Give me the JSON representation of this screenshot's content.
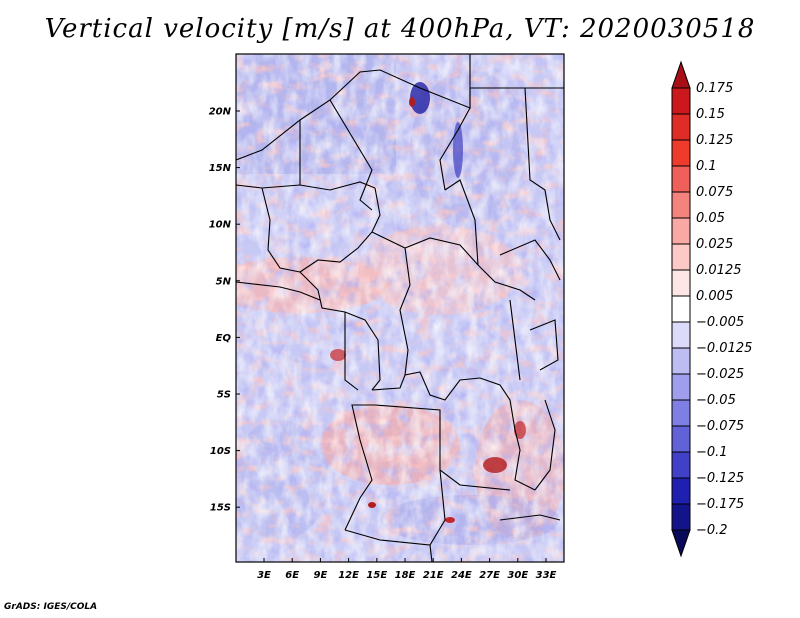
{
  "title": "Vertical velocity [m/s] at 400hPa, VT: 2020030518",
  "footer": "GrADS: IGES/COLA",
  "lat_ticks": [
    "20N",
    "15N",
    "10N",
    "5N",
    "EQ",
    "5S",
    "10S",
    "15S"
  ],
  "lon_ticks": [
    "3E",
    "6E",
    "9E",
    "12E",
    "15E",
    "18E",
    "21E",
    "24E",
    "27E",
    "30E",
    "33E"
  ],
  "colorbar": {
    "labels": [
      "0.175",
      "0.15",
      "0.125",
      "0.1",
      "0.075",
      "0.05",
      "0.025",
      "0.0125",
      "0.005",
      "−0.005",
      "−0.0125",
      "−0.025",
      "−0.05",
      "−0.075",
      "−0.1",
      "−0.125",
      "−0.175",
      "−0.2"
    ],
    "colors": [
      "#a50f15",
      "#cb181d",
      "#de2d26",
      "#ef3b2c",
      "#f0605a",
      "#f4837d",
      "#f8a9a4",
      "#fbcac7",
      "#fde7e6",
      "#ffffff",
      "#dcdcfa",
      "#bdbdf3",
      "#9e9eec",
      "#7f7fe3",
      "#6161d8",
      "#4040c8",
      "#2020b0",
      "#14148a",
      "#0a0a5a"
    ]
  }
}
